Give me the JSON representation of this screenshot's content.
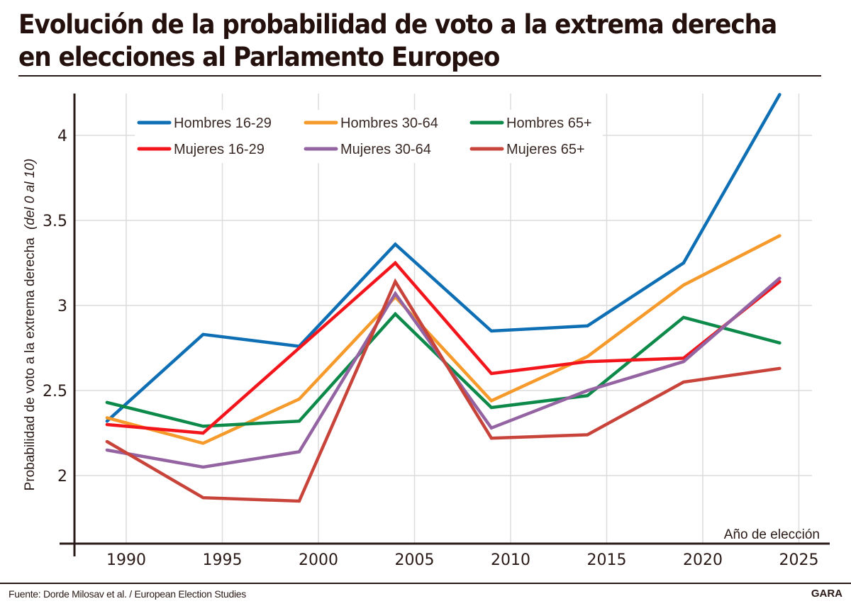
{
  "header": {
    "title": "Evolución de la probabilidad de voto a la extrema derecha en elecciones al Parlamento Europeo"
  },
  "footer": {
    "source": "Fuente: Dorde Milosav et al. / European Election Studies",
    "brand": "GARA"
  },
  "chart_data": {
    "type": "line",
    "title": "Evolución de la probabilidad de voto a la extrema derecha en elecciones al Parlamento Europeo",
    "xlabel": "Año de elección",
    "ylabel": "Probabilidad de voto a la extrema derecha",
    "ylabel_italic_suffix": "(del 0 al 10)",
    "x": [
      1989,
      1994,
      1999,
      2004,
      2009,
      2014,
      2019,
      2024
    ],
    "xlim": [
      1984.5,
      2026.5
    ],
    "ylim": [
      1.6,
      4.25
    ],
    "xticks": [
      1990,
      1995,
      2000,
      2005,
      2010,
      2015,
      2020,
      2025
    ],
    "xtick_labels": [
      "1990",
      "1995",
      "2000",
      "2005",
      "2010",
      "2015",
      "2020",
      "2025"
    ],
    "yticks": [
      2,
      2.5,
      3,
      3.5,
      4
    ],
    "ytick_labels": [
      "2",
      "2.5",
      "3",
      "3.5",
      "4"
    ],
    "grid": true,
    "legend_position": "top-left",
    "series": [
      {
        "name": "Hombres 16-29",
        "color": "#0f6fb4",
        "values": [
          2.32,
          2.83,
          2.76,
          3.36,
          2.85,
          2.88,
          3.25,
          4.24
        ]
      },
      {
        "name": "Hombres 30-64",
        "color": "#f59a2b",
        "values": [
          2.34,
          2.19,
          2.45,
          3.05,
          2.44,
          2.7,
          3.12,
          3.41
        ]
      },
      {
        "name": "Hombres 65+",
        "color": "#0d8a4a",
        "values": [
          2.43,
          2.29,
          2.32,
          2.95,
          2.4,
          2.47,
          2.93,
          2.78
        ]
      },
      {
        "name": "Mujeres 16-29",
        "color": "#f2161c",
        "values": [
          2.3,
          2.25,
          2.75,
          3.25,
          2.6,
          2.67,
          2.69,
          3.14
        ]
      },
      {
        "name": "Mujeres 30-64",
        "color": "#9463a2",
        "values": [
          2.15,
          2.05,
          2.14,
          3.07,
          2.28,
          2.5,
          2.67,
          3.16
        ]
      },
      {
        "name": "Mujeres 65+",
        "color": "#c8443a",
        "values": [
          2.2,
          1.87,
          1.85,
          3.14,
          2.22,
          2.24,
          2.55,
          2.63
        ]
      }
    ]
  }
}
